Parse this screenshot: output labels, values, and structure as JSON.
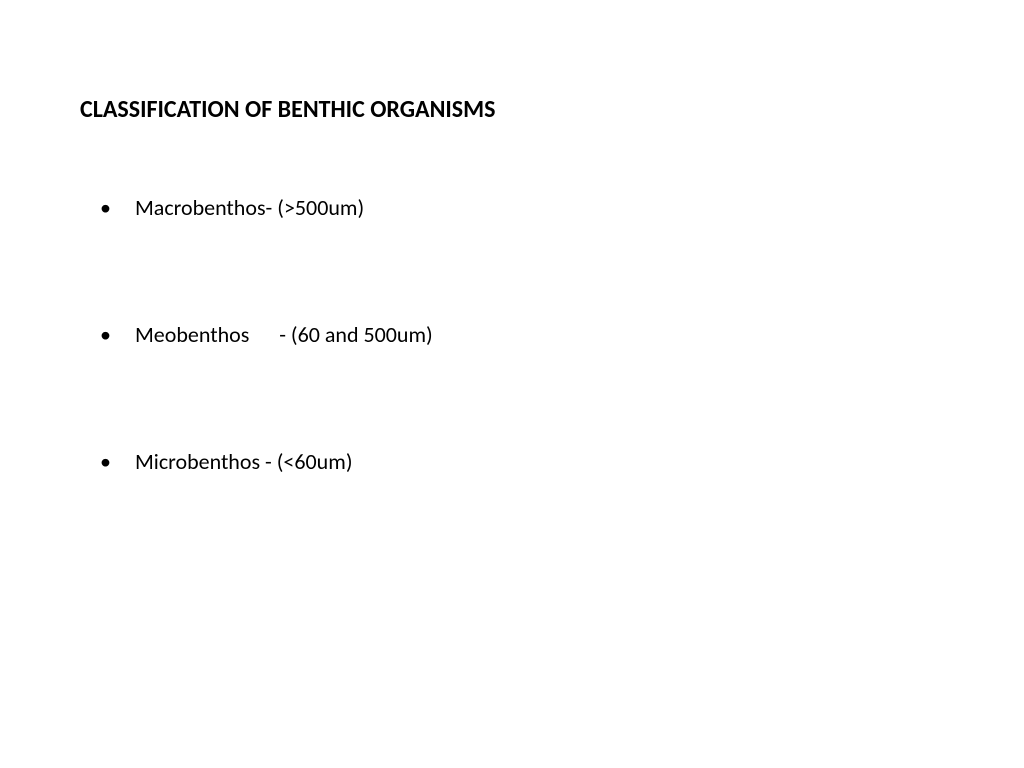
{
  "slide": {
    "title": "CLASSIFICATION OF BENTHIC ORGANISMS",
    "items": [
      "Macrobenthos-  (>500um)",
      "Meobenthos      - (60 and 500um)",
      "Microbenthos - (<60um)"
    ],
    "background_color": "#ffffff",
    "text_color": "#000000",
    "title_fontsize": 24,
    "body_fontsize": 22,
    "title_fontweight": "bold"
  }
}
